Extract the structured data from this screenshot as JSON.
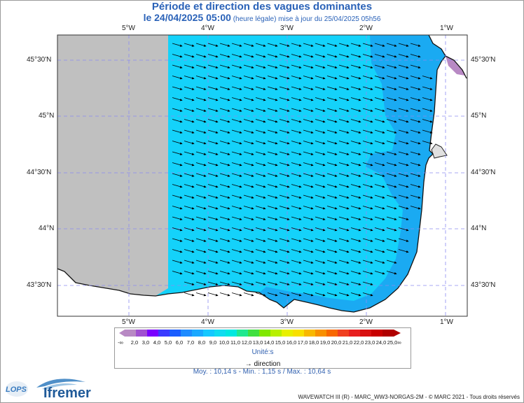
{
  "title": "Période et direction des vagues dominantes",
  "subtitle_main": "le 24/04/2025 05:00",
  "subtitle_detail": " (heure légale) mise à jour du 25/04/2025 05h56",
  "lon_labels": [
    "5°W",
    "4°W",
    "3°W",
    "2°W",
    "1°W"
  ],
  "lat_labels": [
    "45°30'N",
    "45°N",
    "44°30'N",
    "44°N",
    "43°30'N"
  ],
  "legend": {
    "colorbar_values": [
      "2,0",
      "3,0",
      "4,0",
      "5,0",
      "6,0",
      "7,0",
      "8,0",
      "9,0",
      "10,0",
      "11,0",
      "12,0",
      "13,0",
      "14,0",
      "15,0",
      "16,0",
      "17,0",
      "18,0",
      "19,0",
      "20,0",
      "21,0",
      "22,0",
      "23,0",
      "24,0",
      "25,0"
    ],
    "left_end": "-∞",
    "right_end": "∞",
    "units": "Unité:s",
    "direction_label": "direction",
    "colors": [
      "#b889c4",
      "#a050d0",
      "#7a00ff",
      "#3a3aff",
      "#1a5dff",
      "#1e8bff",
      "#1aa8ff",
      "#15c8ff",
      "#10dcf0",
      "#00e8e0",
      "#20e890",
      "#40e040",
      "#80e800",
      "#b8f000",
      "#e8f000",
      "#f8e000",
      "#f8b800",
      "#f89000",
      "#f86800",
      "#f04020",
      "#e82020",
      "#d81010",
      "#c80000",
      "#b00000"
    ]
  },
  "stats": "Moy. : 10,14 s   -   Min. : 1,15 s / Max. : 10,64 s",
  "credit": "WAVEWATCH III (R) - MARC_WW3-NORGAS-2M - © MARC 2021 - Tous droits réservés",
  "logos": {
    "lops": "LOPS",
    "ifremer": "Ifremer"
  },
  "colors": {
    "title": "#2a62b8",
    "sea_period_10": "#14d2fa",
    "sea_period_9": "#1aaaf2",
    "masked_area": "#c0c0c0",
    "land": "#ffffff"
  }
}
